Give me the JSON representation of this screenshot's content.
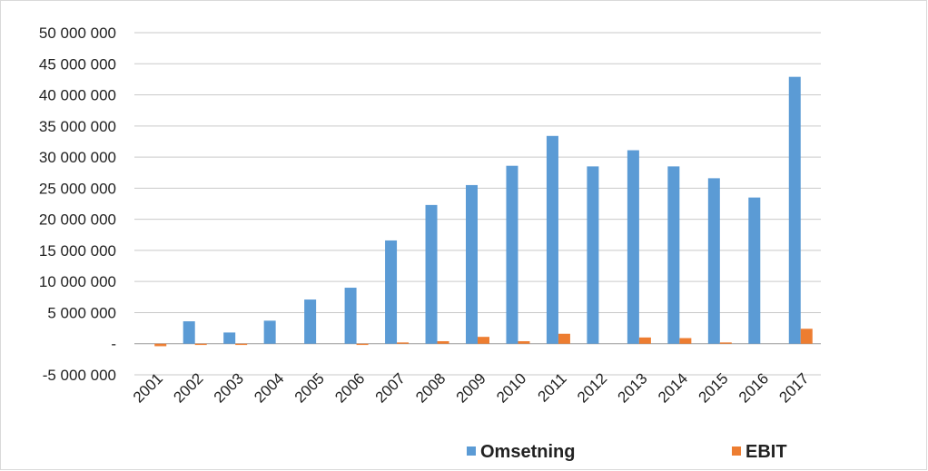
{
  "chart_data": {
    "type": "bar",
    "categories": [
      "2001",
      "2002",
      "2003",
      "2004",
      "2005",
      "2006",
      "2007",
      "2008",
      "2009",
      "2010",
      "2011",
      "2012",
      "2013",
      "2014",
      "2015",
      "2016",
      "2017"
    ],
    "series": [
      {
        "name": "Omsetning",
        "color": "#5b9bd5",
        "values": [
          0,
          3600000,
          1800000,
          3700000,
          7100000,
          9000000,
          16600000,
          22300000,
          25500000,
          28600000,
          33400000,
          28500000,
          31100000,
          28500000,
          26600000,
          23500000,
          42900000
        ]
      },
      {
        "name": "EBIT",
        "color": "#ed7d31",
        "values": [
          -400000,
          -200000,
          -200000,
          0,
          0,
          -200000,
          200000,
          400000,
          1100000,
          400000,
          1600000,
          0,
          1000000,
          900000,
          200000,
          0,
          2400000
        ]
      }
    ],
    "ylim": [
      -5000000,
      50000000
    ],
    "ytick_values": [
      50000000,
      45000000,
      40000000,
      35000000,
      30000000,
      25000000,
      20000000,
      15000000,
      10000000,
      5000000,
      0,
      -5000000
    ],
    "ytick_labels": [
      "50 000 000",
      "45 000 000",
      "40 000 000",
      "35 000 000",
      "30 000 000",
      "25 000 000",
      "20 000 000",
      "15 000 000",
      "10 000 000",
      "5 000 000",
      "-",
      "-5 000 000"
    ],
    "grid": true,
    "legend_position": "bottom",
    "title": "",
    "xlabel": "",
    "ylabel": ""
  }
}
